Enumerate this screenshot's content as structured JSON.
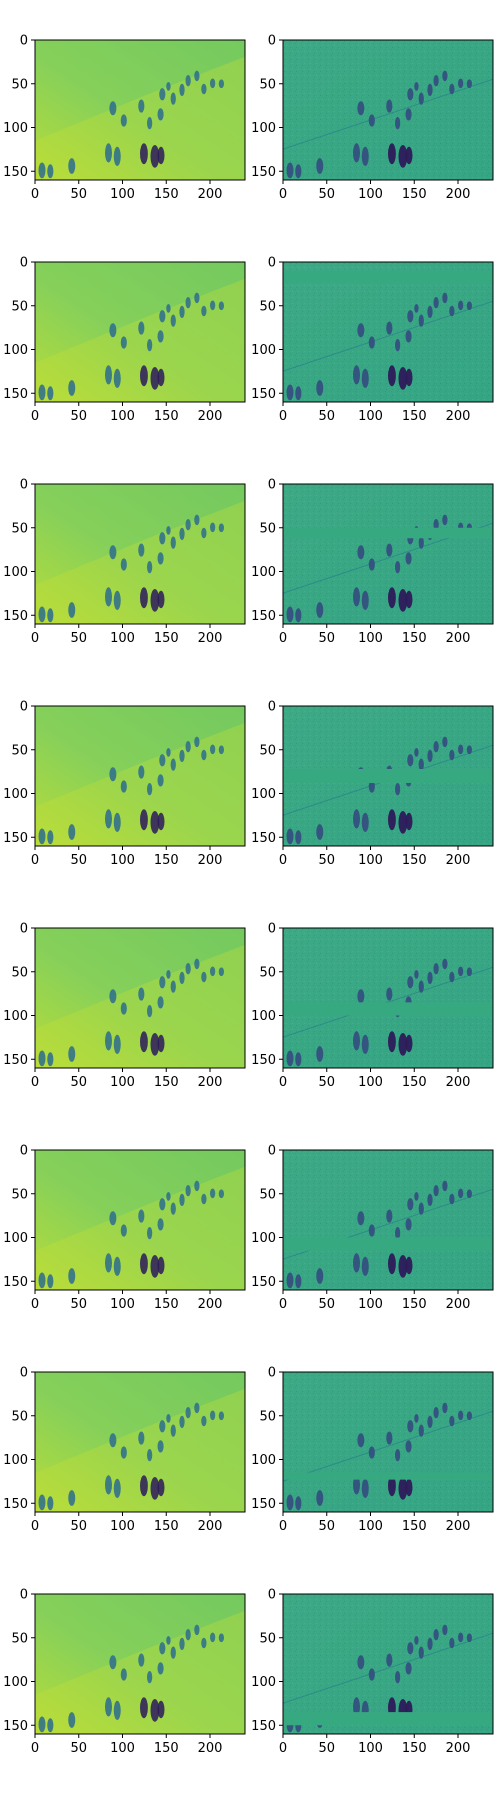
{
  "chart_data": {
    "type": "heatmap",
    "layout": {
      "rows": 8,
      "cols": 2
    },
    "image_size": {
      "width": 240,
      "height": 160
    },
    "colormap": "viridis",
    "x_ticks": [
      0,
      50,
      100,
      150,
      200
    ],
    "y_ticks": [
      0,
      50,
      100,
      150
    ],
    "x_tick_labels": [
      "0",
      "50",
      "100",
      "150",
      "200"
    ],
    "y_tick_labels": [
      "0",
      "50",
      "100",
      "150"
    ],
    "band_rows": [
      null,
      [
        10,
        25
      ],
      [
        50,
        62
      ],
      [
        72,
        88
      ],
      [
        85,
        100
      ],
      [
        100,
        115
      ],
      [
        115,
        123
      ],
      [
        135,
        150
      ]
    ],
    "colors": {
      "left_bg": "#7ecb5e",
      "right_bg": "#3aa886",
      "dark": "#2c1a5a",
      "mid": "#2b6c8e",
      "band": "#37a981"
    }
  }
}
